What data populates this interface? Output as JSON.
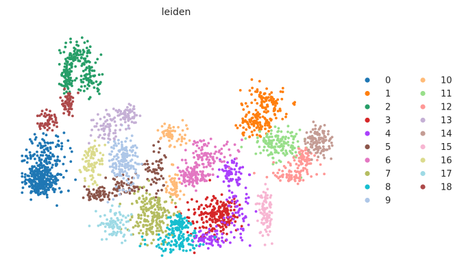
{
  "chart_data": {
    "type": "scatter",
    "title": "leiden",
    "xlabel": "",
    "ylabel": "",
    "grid": false,
    "legend": {
      "placement": "right",
      "columns": 2,
      "entries": [
        {
          "label": "0",
          "color": "#1f77b4"
        },
        {
          "label": "1",
          "color": "#ff7f0e"
        },
        {
          "label": "2",
          "color": "#279e68"
        },
        {
          "label": "3",
          "color": "#d62728"
        },
        {
          "label": "4",
          "color": "#aa40fc"
        },
        {
          "label": "5",
          "color": "#8c564b"
        },
        {
          "label": "6",
          "color": "#e377c2"
        },
        {
          "label": "7",
          "color": "#b5bd61"
        },
        {
          "label": "8",
          "color": "#17becf"
        },
        {
          "label": "9",
          "color": "#aec7e8"
        },
        {
          "label": "10",
          "color": "#ffbb78"
        },
        {
          "label": "11",
          "color": "#98df8a"
        },
        {
          "label": "12",
          "color": "#ff9896"
        },
        {
          "label": "13",
          "color": "#c5b0d5"
        },
        {
          "label": "14",
          "color": "#c49c94"
        },
        {
          "label": "15",
          "color": "#f7b6d2"
        },
        {
          "label": "16",
          "color": "#dbdb8d"
        },
        {
          "label": "17",
          "color": "#9edae5"
        },
        {
          "label": "18",
          "color": "#ad494a"
        }
      ]
    },
    "clusters": [
      {
        "label": "0",
        "n": 420,
        "blobs": [
          [
            0.08,
            0.56,
            0.065,
            0.11
          ],
          [
            0.06,
            0.64,
            0.04,
            0.05
          ]
        ]
      },
      {
        "label": "1",
        "n": 200,
        "blobs": [
          [
            0.78,
            0.3,
            0.065,
            0.07
          ],
          [
            0.75,
            0.39,
            0.05,
            0.05
          ]
        ]
      },
      {
        "label": "2",
        "n": 230,
        "blobs": [
          [
            0.17,
            0.1,
            0.045,
            0.05
          ],
          [
            0.22,
            0.19,
            0.035,
            0.08
          ],
          [
            0.15,
            0.2,
            0.02,
            0.06
          ]
        ]
      },
      {
        "label": "3",
        "n": 230,
        "blobs": [
          [
            0.6,
            0.8,
            0.075,
            0.09
          ],
          [
            0.65,
            0.77,
            0.04,
            0.06
          ]
        ]
      },
      {
        "label": "4",
        "n": 190,
        "blobs": [
          [
            0.69,
            0.77,
            0.04,
            0.12
          ],
          [
            0.6,
            0.88,
            0.05,
            0.03
          ],
          [
            0.67,
            0.6,
            0.03,
            0.05
          ]
        ]
      },
      {
        "label": "5",
        "n": 170,
        "blobs": [
          [
            0.43,
            0.58,
            0.045,
            0.1
          ],
          [
            0.33,
            0.66,
            0.05,
            0.04
          ],
          [
            0.24,
            0.69,
            0.04,
            0.03
          ]
        ]
      },
      {
        "label": "6",
        "n": 200,
        "blobs": [
          [
            0.6,
            0.53,
            0.08,
            0.06
          ],
          [
            0.55,
            0.62,
            0.04,
            0.04
          ]
        ]
      },
      {
        "label": "7",
        "n": 200,
        "blobs": [
          [
            0.42,
            0.78,
            0.06,
            0.09
          ]
        ]
      },
      {
        "label": "8",
        "n": 180,
        "blobs": [
          [
            0.5,
            0.9,
            0.08,
            0.04
          ],
          [
            0.5,
            0.82,
            0.03,
            0.04
          ]
        ]
      },
      {
        "label": "9",
        "n": 170,
        "blobs": [
          [
            0.33,
            0.55,
            0.04,
            0.1
          ]
        ]
      },
      {
        "label": "10",
        "n": 110,
        "blobs": [
          [
            0.48,
            0.44,
            0.045,
            0.04
          ],
          [
            0.49,
            0.66,
            0.02,
            0.07
          ]
        ]
      },
      {
        "label": "11",
        "n": 140,
        "blobs": [
          [
            0.82,
            0.48,
            0.07,
            0.06
          ]
        ]
      },
      {
        "label": "12",
        "n": 130,
        "blobs": [
          [
            0.86,
            0.61,
            0.075,
            0.035
          ],
          [
            0.9,
            0.54,
            0.03,
            0.04
          ]
        ]
      },
      {
        "label": "13",
        "n": 120,
        "blobs": [
          [
            0.27,
            0.4,
            0.045,
            0.06
          ],
          [
            0.34,
            0.36,
            0.03,
            0.04
          ]
        ]
      },
      {
        "label": "14",
        "n": 110,
        "blobs": [
          [
            0.95,
            0.47,
            0.035,
            0.06
          ]
        ]
      },
      {
        "label": "15",
        "n": 90,
        "blobs": [
          [
            0.78,
            0.77,
            0.02,
            0.1
          ]
        ]
      },
      {
        "label": "16",
        "n": 90,
        "blobs": [
          [
            0.23,
            0.56,
            0.03,
            0.08
          ]
        ]
      },
      {
        "label": "17",
        "n": 90,
        "blobs": [
          [
            0.3,
            0.82,
            0.05,
            0.06
          ]
        ]
      },
      {
        "label": "18",
        "n": 100,
        "blobs": [
          [
            0.09,
            0.38,
            0.03,
            0.04
          ],
          [
            0.15,
            0.3,
            0.02,
            0.05
          ]
        ]
      }
    ]
  }
}
